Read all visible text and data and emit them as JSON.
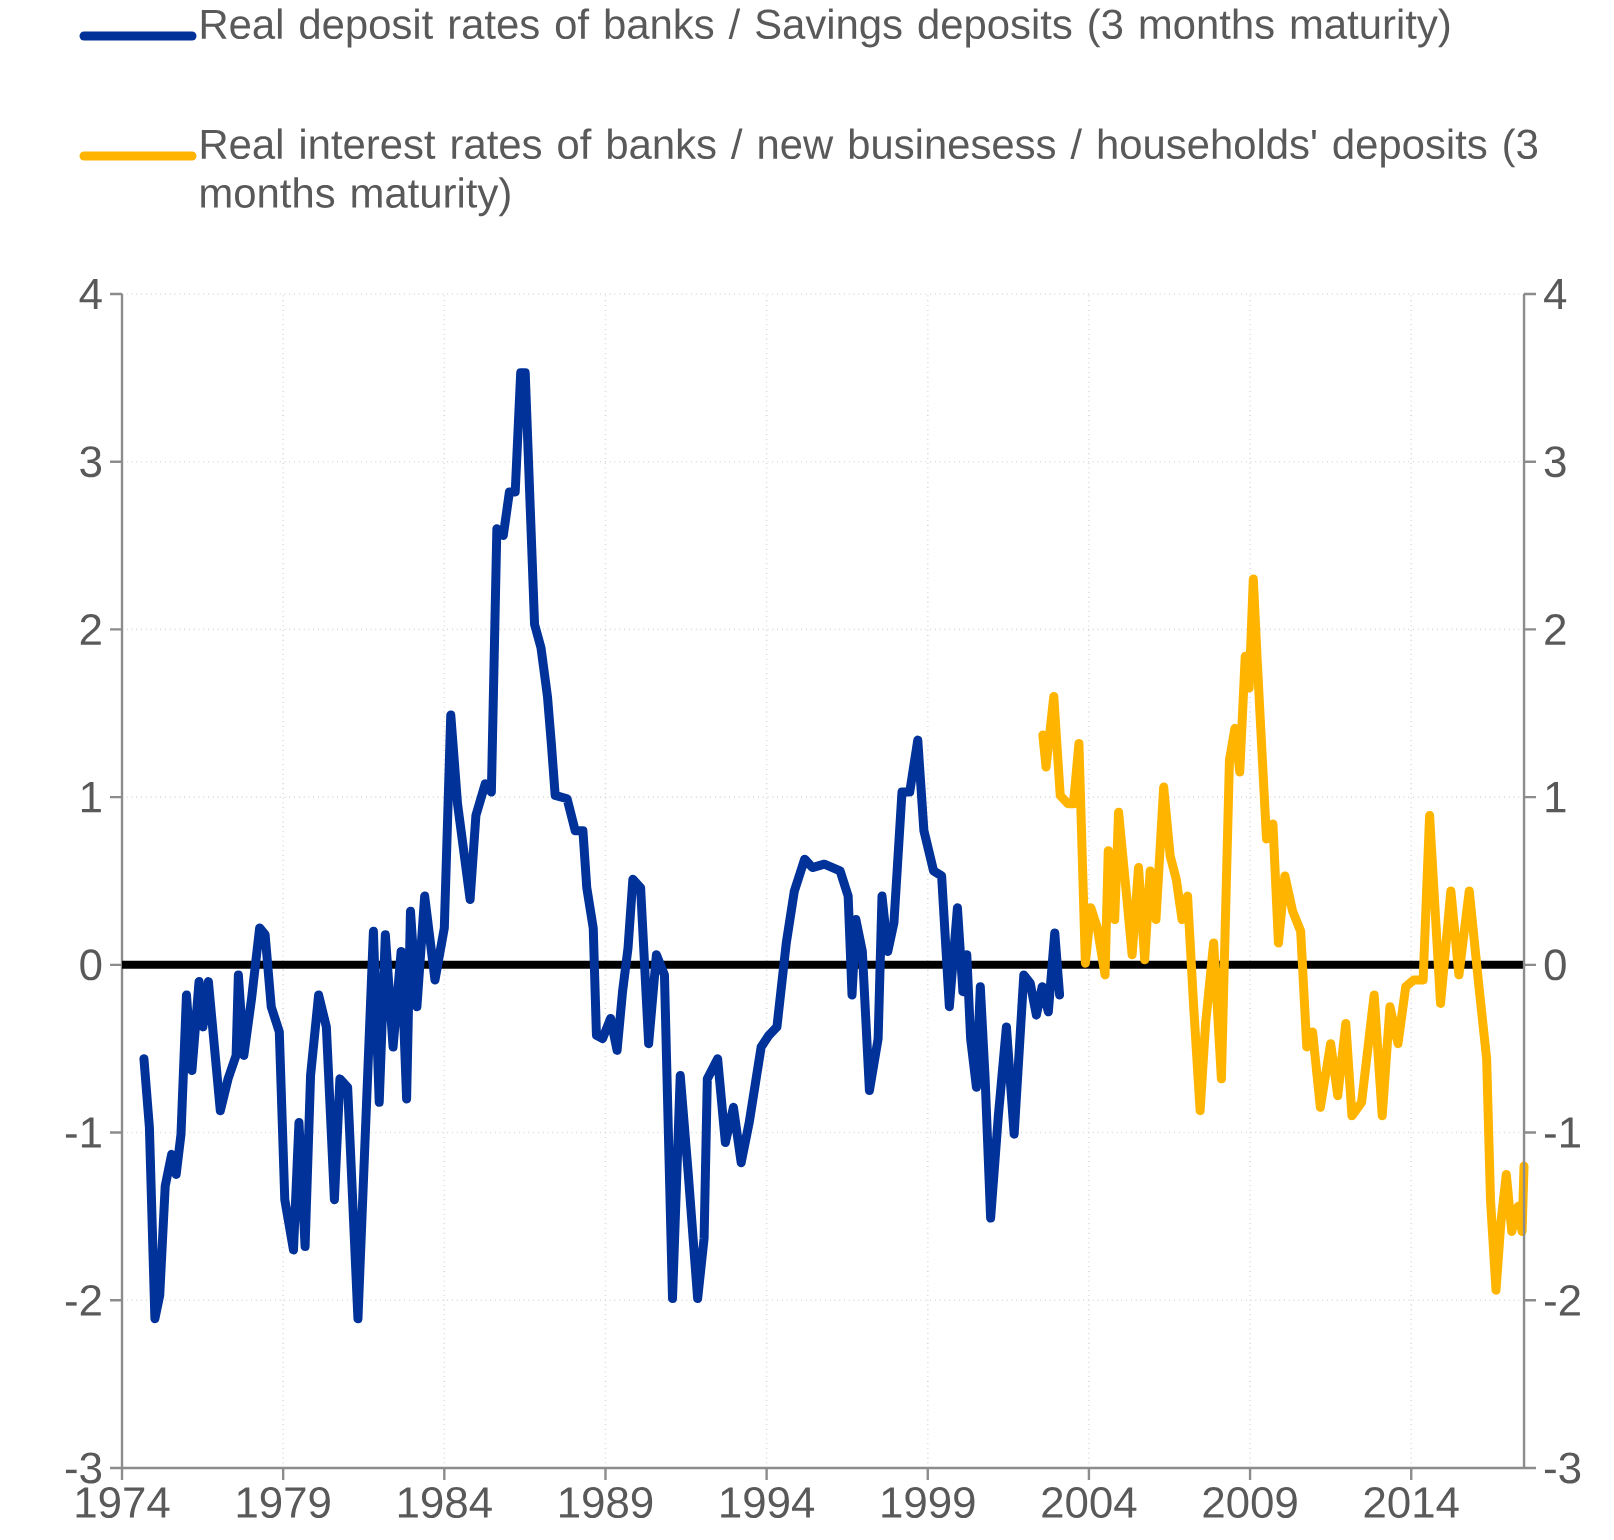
{
  "chart_data": {
    "type": "line",
    "xlim": [
      1974,
      2017.5
    ],
    "xticks": [
      1974,
      1979,
      1984,
      1989,
      1994,
      1999,
      2004,
      2009,
      2014
    ],
    "ylim": [
      -3,
      4
    ],
    "yticks": [
      -3,
      -2,
      -1,
      0,
      1,
      2,
      3,
      4
    ],
    "y2lim": [
      -3,
      4
    ],
    "y2ticks": [
      -3,
      -2,
      -1,
      0,
      1,
      2,
      3,
      4
    ],
    "grid": true,
    "legend": "top",
    "line_style": "solid",
    "marker": "none",
    "ref_lines": [
      {
        "axis": "y",
        "value": 0,
        "color": "#000000"
      }
    ],
    "series": [
      {
        "name": "Real deposit rates of banks / Savings deposits (3 months maturity)",
        "color": "#003299",
        "x": [
          1974.68,
          1974.85,
          1975.02,
          1975.17,
          1975.34,
          1975.54,
          1975.68,
          1975.83,
          1976.0,
          1976.17,
          1976.39,
          1976.51,
          1976.68,
          1977.05,
          1977.29,
          1977.54,
          1977.61,
          1977.78,
          1978.02,
          1978.27,
          1978.44,
          1978.63,
          1978.88,
          1979.05,
          1979.32,
          1979.49,
          1979.68,
          1979.85,
          1980.1,
          1980.34,
          1980.59,
          1980.76,
          1981.0,
          1981.32,
          1981.8,
          1981.98,
          1982.17,
          1982.41,
          1982.66,
          1982.83,
          1982.95,
          1983.15,
          1983.39,
          1983.71,
          1984.0,
          1984.2,
          1984.41,
          1984.8,
          1984.98,
          1985.27,
          1985.46,
          1985.63,
          1985.83,
          1986.02,
          1986.2,
          1986.37,
          1986.51,
          1986.8,
          1987.0,
          1987.2,
          1987.32,
          1987.44,
          1987.81,
          1988.06,
          1988.3,
          1988.42,
          1988.62,
          1988.72,
          1988.91,
          1989.16,
          1989.36,
          1989.53,
          1989.7,
          1989.85,
          1990.09,
          1990.34,
          1990.58,
          1990.83,
          1991.08,
          1991.32,
          1991.57,
          1991.86,
          1992.06,
          1992.16,
          1992.48,
          1992.72,
          1992.97,
          1993.21,
          1993.46,
          1993.83,
          1994.07,
          1994.32,
          1994.61,
          1994.86,
          1995.18,
          1995.42,
          1995.79,
          1996.28,
          1996.53,
          1996.65,
          1996.77,
          1996.97,
          1997.19,
          1997.46,
          1997.58,
          1997.76,
          1997.95,
          1998.2,
          1998.44,
          1998.69,
          1998.88,
          1999.18,
          1999.43,
          1999.67,
          1999.92,
          2000.09,
          2000.21,
          2000.33,
          2000.51,
          2000.63,
          2000.78,
          2000.95,
          2001.19,
          2001.44,
          2001.68,
          2001.98,
          2002.18,
          2002.37,
          2002.55,
          2002.74,
          2002.94,
          2003.09
        ],
        "values": [
          -0.56,
          -0.97,
          -2.11,
          -1.97,
          -1.32,
          -1.13,
          -1.25,
          -1.01,
          -0.18,
          -0.63,
          -0.1,
          -0.37,
          -0.1,
          -0.87,
          -0.68,
          -0.54,
          -0.06,
          -0.54,
          -0.2,
          0.22,
          0.18,
          -0.25,
          -0.4,
          -1.4,
          -1.7,
          -0.94,
          -1.68,
          -0.66,
          -0.18,
          -0.37,
          -1.4,
          -0.68,
          -0.73,
          -2.11,
          0.2,
          -0.82,
          0.18,
          -0.49,
          0.08,
          -0.8,
          0.32,
          -0.25,
          0.41,
          -0.09,
          0.22,
          1.49,
          0.96,
          0.39,
          0.89,
          1.08,
          1.03,
          2.6,
          2.56,
          2.82,
          2.82,
          3.53,
          3.53,
          2.03,
          1.89,
          1.6,
          1.32,
          1.01,
          0.99,
          0.8,
          0.8,
          0.46,
          0.22,
          -0.42,
          -0.44,
          -0.32,
          -0.51,
          -0.16,
          0.1,
          0.51,
          0.46,
          -0.47,
          0.06,
          -0.06,
          -1.99,
          -0.66,
          -1.25,
          -1.99,
          -1.63,
          -0.68,
          -0.56,
          -1.06,
          -0.85,
          -1.18,
          -0.94,
          -0.49,
          -0.42,
          -0.37,
          0.13,
          0.44,
          0.63,
          0.58,
          0.6,
          0.56,
          0.41,
          -0.18,
          0.27,
          0.08,
          -0.75,
          -0.44,
          0.41,
          0.08,
          0.25,
          1.03,
          1.03,
          1.34,
          0.8,
          0.56,
          0.53,
          -0.25,
          0.34,
          -0.16,
          0.06,
          -0.44,
          -0.73,
          -0.13,
          -0.68,
          -1.51,
          -0.9,
          -0.37,
          -1.01,
          -0.06,
          -0.11,
          -0.3,
          -0.13,
          -0.28,
          0.19,
          -0.18
        ]
      },
      {
        "name": "Real interest rates of banks / new businesess / households' deposits (3 months maturity)",
        "color": "#ffb400",
        "x": [
          2002.57,
          2002.67,
          2002.91,
          2003.11,
          2003.35,
          2003.52,
          2003.69,
          2003.89,
          2004.06,
          2004.26,
          2004.5,
          2004.6,
          2004.8,
          2004.92,
          2005.17,
          2005.34,
          2005.54,
          2005.73,
          2005.9,
          2006.08,
          2006.32,
          2006.52,
          2006.71,
          2006.89,
          2007.06,
          2007.25,
          2007.45,
          2007.62,
          2007.87,
          2008.11,
          2008.36,
          2008.53,
          2008.68,
          2008.85,
          2008.97,
          2009.1,
          2009.22,
          2009.51,
          2009.71,
          2009.88,
          2010.08,
          2010.32,
          2010.57,
          2010.76,
          2010.94,
          2011.18,
          2011.5,
          2011.72,
          2011.97,
          2012.16,
          2012.46,
          2012.85,
          2013.1,
          2013.34,
          2013.59,
          2013.83,
          2014.08,
          2014.37,
          2014.57,
          2014.91,
          2015.23,
          2015.48,
          2015.8,
          2016.09,
          2016.34,
          2016.46,
          2016.63,
          2016.78,
          2016.95,
          2017.12,
          2017.32,
          2017.44,
          2017.5
        ],
        "values": [
          1.37,
          1.18,
          1.6,
          1.01,
          0.96,
          0.96,
          1.32,
          0.01,
          0.34,
          0.22,
          -0.06,
          0.68,
          0.27,
          0.91,
          0.41,
          0.06,
          0.58,
          0.03,
          0.56,
          0.27,
          1.06,
          0.65,
          0.51,
          0.27,
          0.41,
          -0.25,
          -0.87,
          -0.35,
          0.13,
          -0.68,
          1.22,
          1.41,
          1.15,
          1.84,
          1.65,
          2.3,
          1.82,
          0.75,
          0.84,
          0.13,
          0.53,
          0.32,
          0.2,
          -0.49,
          -0.4,
          -0.85,
          -0.47,
          -0.78,
          -0.35,
          -0.9,
          -0.82,
          -0.18,
          -0.9,
          -0.25,
          -0.47,
          -0.13,
          -0.09,
          -0.09,
          0.89,
          -0.23,
          0.44,
          -0.06,
          0.44,
          -0.11,
          -0.56,
          -1.4,
          -1.94,
          -1.54,
          -1.25,
          -1.59,
          -1.44,
          -1.59,
          -1.2
        ]
      }
    ]
  }
}
